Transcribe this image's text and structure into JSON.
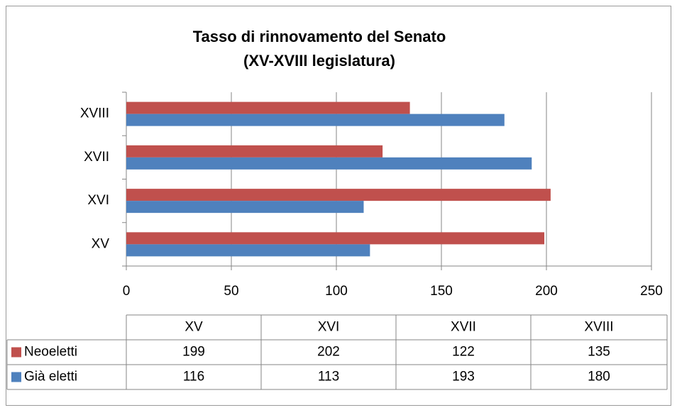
{
  "chart_data": {
    "type": "bar",
    "orientation": "horizontal",
    "title": "Tasso di rinnovamento del Senato",
    "subtitle": "(XV-XVIII legislatura)",
    "categories": [
      "XV",
      "XVI",
      "XVII",
      "XVIII"
    ],
    "series": [
      {
        "name": "Neoeletti",
        "color": "#c0504d",
        "values": [
          199,
          202,
          122,
          135
        ]
      },
      {
        "name": "Già eletti",
        "color": "#4f81bd",
        "values": [
          116,
          113,
          193,
          180
        ]
      }
    ],
    "xlim": [
      0,
      250
    ],
    "xticks": [
      0,
      50,
      100,
      150,
      200,
      250
    ],
    "grid": true,
    "data_table": true
  }
}
